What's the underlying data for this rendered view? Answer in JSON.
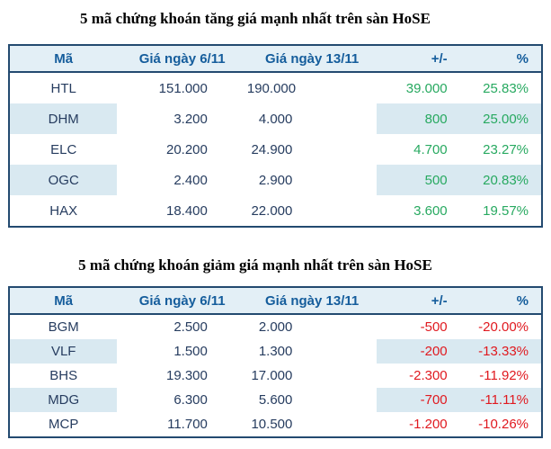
{
  "colors": {
    "border": "#234a70",
    "header_bg": "#e3eff6",
    "stripe_bg": "#d9e9f1",
    "header_text": "#155d9c",
    "body_text": "#263c5f",
    "green": "#27a960",
    "red": "#e0191f",
    "page_bg": "#ffffff"
  },
  "tables": [
    {
      "title": "5 mã chứng khoán tăng giá mạnh nhất trên sàn HoSE",
      "trend": "up",
      "headers": [
        "Mã",
        "Giá ngày 6/11",
        "Giá ngày 13/11",
        "+/-",
        "%"
      ],
      "rows": [
        [
          "HTL",
          "151.000",
          "190.000",
          "39.000",
          "25.83%"
        ],
        [
          "DHM",
          "3.200",
          "4.000",
          "800",
          "25.00%"
        ],
        [
          "ELC",
          "20.200",
          "24.900",
          "4.700",
          "23.27%"
        ],
        [
          "OGC",
          "2.400",
          "2.900",
          "500",
          "20.83%"
        ],
        [
          "HAX",
          "18.400",
          "22.000",
          "3.600",
          "19.57%"
        ]
      ]
    },
    {
      "title": "5 mã chứng khoán giảm giá mạnh nhất trên sàn HoSE",
      "trend": "down",
      "headers": [
        "Mã",
        "Giá ngày 6/11",
        "Giá ngày 13/11",
        "+/-",
        "%"
      ],
      "rows": [
        [
          "BGM",
          "2.500",
          "2.000",
          "-500",
          "-20.00%"
        ],
        [
          "VLF",
          "1.500",
          "1.300",
          "-200",
          "-13.33%"
        ],
        [
          "BHS",
          "19.300",
          "17.000",
          "-2.300",
          "-11.92%"
        ],
        [
          "MDG",
          "6.300",
          "5.600",
          "-700",
          "-11.11%"
        ],
        [
          "MCP",
          "11.700",
          "10.500",
          "-1.200",
          "-10.26%"
        ]
      ]
    }
  ]
}
